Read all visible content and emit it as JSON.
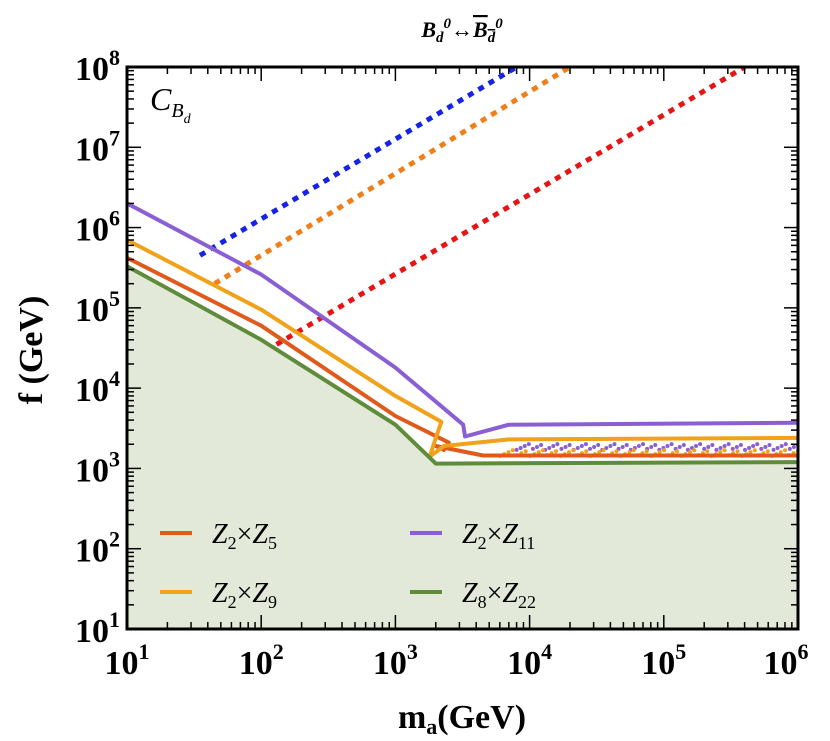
{
  "chart_data": {
    "type": "line",
    "title": "Bd0 ↔ Bd0bar",
    "title_parts": {
      "left": "B",
      "left_sub": "d",
      "left_sup": "0",
      "arrow": "↔",
      "right": "B",
      "right_sub": "d",
      "right_sup": "0"
    },
    "panel_label": {
      "main": "C",
      "sub": "B",
      "subsub": "d"
    },
    "xlabel": {
      "main": "m",
      "sub": "a",
      "rest": "(GeV)"
    },
    "ylabel": "f (GeV)",
    "xscale": "log",
    "yscale": "log",
    "xlim": [
      10,
      1000000
    ],
    "ylim": [
      10,
      100000000
    ],
    "x_ticks": [
      {
        "base": "10",
        "exp": "1",
        "value": 10
      },
      {
        "base": "10",
        "exp": "2",
        "value": 100
      },
      {
        "base": "10",
        "exp": "3",
        "value": 1000
      },
      {
        "base": "10",
        "exp": "4",
        "value": 10000
      },
      {
        "base": "10",
        "exp": "5",
        "value": 100000
      },
      {
        "base": "10",
        "exp": "6",
        "value": 1000000
      }
    ],
    "y_ticks": [
      {
        "base": "10",
        "exp": "1",
        "value": 10
      },
      {
        "base": "10",
        "exp": "2",
        "value": 100
      },
      {
        "base": "10",
        "exp": "3",
        "value": 1000
      },
      {
        "base": "10",
        "exp": "4",
        "value": 10000
      },
      {
        "base": "10",
        "exp": "5",
        "value": 100000
      },
      {
        "base": "10",
        "exp": "6",
        "value": 1000000
      },
      {
        "base": "10",
        "exp": "7",
        "value": 10000000
      },
      {
        "base": "10",
        "exp": "8",
        "value": 100000000
      }
    ],
    "shaded_region": {
      "color": "#e3e9d9",
      "description": "excluded"
    },
    "series": [
      {
        "name": "Z2×Z5",
        "label": {
          "a": "Z",
          "a_sub": "2",
          "times": "×",
          "b": "Z",
          "b_sub": "5"
        },
        "color": "#e05a1c",
        "x": [
          10,
          100,
          1000,
          2500,
          2300,
          2000,
          4500,
          1000000
        ],
        "y": [
          420000,
          60000,
          4500,
          2100,
          1700,
          1900,
          1450,
          1450
        ]
      },
      {
        "name": "Z2×Z9",
        "label": {
          "a": "Z",
          "a_sub": "2",
          "times": "×",
          "b": "Z",
          "b_sub": "9"
        },
        "color": "#f0a21a",
        "x": [
          10,
          100,
          1000,
          2200,
          2000,
          1800,
          2300,
          7000,
          1000000
        ],
        "y": [
          700000,
          95000,
          8000,
          3800,
          2400,
          1400,
          1900,
          2300,
          2400
        ]
      },
      {
        "name": "Z2×Z11",
        "label": {
          "a": "Z",
          "a_sub": "2",
          "times": "×",
          "b": "Z",
          "b_sub": "11"
        },
        "color": "#8a5fd4",
        "x": [
          10,
          100,
          1000,
          3200,
          3300,
          7000,
          1000000
        ],
        "y": [
          2000000,
          260000,
          18000,
          3500,
          2500,
          3500,
          3700
        ]
      },
      {
        "name": "Z8×Z22",
        "label": {
          "a": "Z",
          "a_sub": "8",
          "times": "×",
          "b": "Z",
          "b_sub": "22"
        },
        "color": "#5e8c3a",
        "x": [
          10,
          100,
          1000,
          2000,
          1000000
        ],
        "y": [
          330000,
          40000,
          3500,
          1150,
          1200
        ]
      }
    ],
    "dotted_lines": [
      {
        "color": "#1423e6",
        "x": [
          35,
          8000
        ],
        "y": [
          450000,
          100000000
        ]
      },
      {
        "color": "#f07e1a",
        "x": [
          45,
          20000
        ],
        "y": [
          200000,
          100000000
        ]
      },
      {
        "color": "#e61414",
        "x": [
          130,
          400000
        ],
        "y": [
          35000,
          100000000
        ]
      }
    ],
    "scatter_points": [
      {
        "color": "#8a5fd4",
        "x_range": [
          8000,
          1000000
        ],
        "y": 1850
      },
      {
        "color": "#f0a21a",
        "x_range": [
          6000,
          1000000
        ],
        "y": 1550
      }
    ]
  }
}
